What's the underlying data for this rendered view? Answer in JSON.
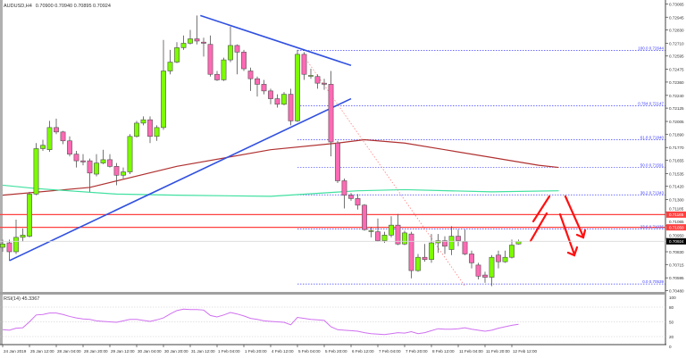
{
  "header": {
    "symbol_timeframe": "AUDUSD,H4",
    "ohlc_readout": "0.70900 0.70940 0.70895 0.70924"
  },
  "rsi_panel": {
    "label": "RSI(14) 45.3367",
    "levels": [
      20,
      50,
      80
    ],
    "scale_labels": [
      "100",
      "80",
      "50",
      "20",
      "0"
    ]
  },
  "colors": {
    "bull_candle": "#7cfc00",
    "bear_candle": "#ff69b4",
    "candle_outline": "#505050",
    "ma_red": "#b03030",
    "ma_green": "#40e0a0",
    "trendline": "#3050e0",
    "fib": "#4040ff",
    "horizontal_level": "#ff4040",
    "arrows": "#ff1010",
    "rsi_line": "#d070f0",
    "price_tag": "#000000"
  },
  "chart_data": {
    "type": "candlestick",
    "symbol": "AUDUSD",
    "timeframe": "H4",
    "ylim": [
      0.7048,
      0.7307
    ],
    "y_ticks": [
      "0.73065",
      "0.72945",
      "0.72830",
      "0.72710",
      "0.72595",
      "0.72475",
      "0.72360",
      "0.72240",
      "0.72125",
      "0.72005",
      "0.71890",
      "0.71770",
      "0.71655",
      "0.71535",
      "0.71420",
      "0.71300",
      "0.71185",
      "0.71065",
      "0.70950",
      "0.70830",
      "0.70715",
      "0.70595",
      "0.70480"
    ],
    "x_labels": [
      "24 Jan 2019",
      "25 Jan 12:00",
      "28 Jan 04:00",
      "28 Jan 20:00",
      "29 Jan 12:00",
      "30 Jan 04:00",
      "30 Jan 20:00",
      "31 Jan 12:00",
      "1 Feb 04:00",
      "1 Feb 20:00",
      "4 Feb 12:00",
      "5 Feb 04:00",
      "5 Feb 20:00",
      "6 Feb 12:00",
      "7 Feb 04:00",
      "7 Feb 20:00",
      "8 Feb 12:00",
      "11 Feb 04:00",
      "11 Feb 20:00",
      "12 Feb 12:00"
    ],
    "x_label_every_bars": 4,
    "candles_ohlc": [
      [
        0.7087,
        0.7094,
        0.7083,
        0.709
      ],
      [
        0.7091,
        0.7094,
        0.7075,
        0.7083
      ],
      [
        0.7083,
        0.7112,
        0.7081,
        0.7096
      ],
      [
        0.7096,
        0.7104,
        0.7092,
        0.7098
      ],
      [
        0.7097,
        0.7137,
        0.7096,
        0.7135
      ],
      [
        0.7135,
        0.7181,
        0.7134,
        0.7176
      ],
      [
        0.7176,
        0.7184,
        0.7174,
        0.7179
      ],
      [
        0.7175,
        0.7201,
        0.7173,
        0.7195
      ],
      [
        0.7195,
        0.7203,
        0.7189,
        0.7191
      ],
      [
        0.7191,
        0.7192,
        0.718,
        0.7183
      ],
      [
        0.7183,
        0.7187,
        0.7169,
        0.7171
      ],
      [
        0.7171,
        0.7174,
        0.7159,
        0.7165
      ],
      [
        0.7165,
        0.7171,
        0.7161,
        0.7164
      ],
      [
        0.7165,
        0.7167,
        0.7137,
        0.7154
      ],
      [
        0.7153,
        0.7171,
        0.7151,
        0.7163
      ],
      [
        0.7163,
        0.7175,
        0.7162,
        0.7166
      ],
      [
        0.7166,
        0.7171,
        0.7159,
        0.716
      ],
      [
        0.716,
        0.7163,
        0.7143,
        0.7152
      ],
      [
        0.7152,
        0.7159,
        0.7149,
        0.7155
      ],
      [
        0.7155,
        0.7189,
        0.7153,
        0.7187
      ],
      [
        0.7187,
        0.7201,
        0.7186,
        0.7199
      ],
      [
        0.7199,
        0.7205,
        0.7197,
        0.7202
      ],
      [
        0.7202,
        0.7205,
        0.7181,
        0.7187
      ],
      [
        0.7187,
        0.7197,
        0.7183,
        0.7195
      ],
      [
        0.7195,
        0.7274,
        0.7193,
        0.7246
      ],
      [
        0.7246,
        0.7265,
        0.7243,
        0.7254
      ],
      [
        0.7254,
        0.7272,
        0.7253,
        0.7267
      ],
      [
        0.7267,
        0.7278,
        0.7265,
        0.7271
      ],
      [
        0.7271,
        0.7283,
        0.727,
        0.7275
      ],
      [
        0.7275,
        0.7296,
        0.727,
        0.7273
      ],
      [
        0.7272,
        0.7276,
        0.7259,
        0.7271
      ],
      [
        0.727,
        0.7278,
        0.7241,
        0.7243
      ],
      [
        0.7243,
        0.7246,
        0.7237,
        0.7238
      ],
      [
        0.7238,
        0.7258,
        0.7237,
        0.7256
      ],
      [
        0.7256,
        0.7286,
        0.7254,
        0.7269
      ],
      [
        0.7269,
        0.727,
        0.7243,
        0.7263
      ],
      [
        0.7263,
        0.7265,
        0.7246,
        0.7248
      ],
      [
        0.7246,
        0.7249,
        0.7228,
        0.7239
      ],
      [
        0.7239,
        0.7241,
        0.7223,
        0.7234
      ],
      [
        0.7234,
        0.7238,
        0.7225,
        0.7228
      ],
      [
        0.7228,
        0.723,
        0.7216,
        0.7221
      ],
      [
        0.7221,
        0.7225,
        0.7213,
        0.7216
      ],
      [
        0.7216,
        0.7227,
        0.7215,
        0.7225
      ],
      [
        0.7225,
        0.723,
        0.7197,
        0.7201
      ],
      [
        0.7201,
        0.7265,
        0.72,
        0.7261
      ],
      [
        0.7261,
        0.7263,
        0.7238,
        0.7243
      ],
      [
        0.7242,
        0.7248,
        0.7239,
        0.7242
      ],
      [
        0.7241,
        0.7243,
        0.723,
        0.7235
      ],
      [
        0.7235,
        0.7239,
        0.7229,
        0.7234
      ],
      [
        0.7234,
        0.7246,
        0.7169,
        0.7182
      ],
      [
        0.7181,
        0.7183,
        0.7145,
        0.7147
      ],
      [
        0.7147,
        0.7149,
        0.7122,
        0.7134
      ],
      [
        0.7134,
        0.7136,
        0.7129,
        0.7131
      ],
      [
        0.7131,
        0.7135,
        0.7121,
        0.7125
      ],
      [
        0.7125,
        0.7126,
        0.7102,
        0.7103
      ],
      [
        0.7102,
        0.7105,
        0.7096,
        0.7102
      ],
      [
        0.7101,
        0.7113,
        0.7092,
        0.7093
      ],
      [
        0.7093,
        0.7101,
        0.7091,
        0.7098
      ],
      [
        0.7098,
        0.7115,
        0.7096,
        0.7107
      ],
      [
        0.7107,
        0.7117,
        0.7089,
        0.709
      ],
      [
        0.709,
        0.7102,
        0.7089,
        0.71
      ],
      [
        0.7099,
        0.7101,
        0.7059,
        0.7066
      ],
      [
        0.7066,
        0.7081,
        0.7065,
        0.7078
      ],
      [
        0.7078,
        0.709,
        0.7074,
        0.7076
      ],
      [
        0.7076,
        0.7099,
        0.7073,
        0.7091
      ],
      [
        0.7091,
        0.7099,
        0.7082,
        0.7093
      ],
      [
        0.7093,
        0.7097,
        0.7081,
        0.7088
      ],
      [
        0.7085,
        0.7106,
        0.708,
        0.7097
      ],
      [
        0.7097,
        0.7103,
        0.7088,
        0.7093
      ],
      [
        0.7092,
        0.7103,
        0.708,
        0.7081
      ],
      [
        0.7081,
        0.7084,
        0.7068,
        0.7073
      ],
      [
        0.7071,
        0.7073,
        0.7058,
        0.7061
      ],
      [
        0.7062,
        0.7065,
        0.7055,
        0.706
      ],
      [
        0.706,
        0.708,
        0.7052,
        0.7078
      ],
      [
        0.708,
        0.7084,
        0.7068,
        0.7074
      ],
      [
        0.7074,
        0.7084,
        0.7073,
        0.7078
      ],
      [
        0.7078,
        0.7094,
        0.7077,
        0.7089
      ],
      [
        0.709,
        0.7094,
        0.70895,
        0.70924
      ]
    ],
    "moving_averages": [
      {
        "color": "#b03030",
        "points": [
          [
            0,
            0.7134
          ],
          [
            13,
            0.7141
          ],
          [
            26,
            0.716
          ],
          [
            40,
            0.7175
          ],
          [
            50,
            0.7181
          ],
          [
            54,
            0.7184
          ],
          [
            60,
            0.7181
          ],
          [
            66,
            0.7175
          ],
          [
            73,
            0.7168
          ],
          [
            80,
            0.7161
          ],
          [
            83,
            0.7159
          ]
        ]
      },
      {
        "color": "#40e0a0",
        "points": [
          [
            0,
            0.7143
          ],
          [
            5,
            0.714
          ],
          [
            17,
            0.7135
          ],
          [
            26,
            0.7134
          ],
          [
            40,
            0.7133
          ],
          [
            53,
            0.7138
          ],
          [
            60,
            0.7139
          ],
          [
            73,
            0.7137
          ],
          [
            83,
            0.7138
          ]
        ]
      }
    ],
    "trendlines": [
      {
        "from": [
          29.5,
          0.7296
        ],
        "to": [
          52,
          0.7251
        ],
        "style": "solid"
      },
      {
        "from": [
          1,
          0.7075
        ],
        "to": [
          52,
          0.7221
        ],
        "style": "solid"
      },
      {
        "from": [
          45,
          0.7259
        ],
        "to": [
          69,
          0.7052
        ],
        "style": "dotted"
      }
    ],
    "fibonacci": {
      "start_bar": 44,
      "levels": [
        {
          "label": "100.0 0.72644",
          "price": 0.72644
        },
        {
          "label": "0.764 0.72147",
          "price": 0.72147
        },
        {
          "label": "61.8 0.71840",
          "price": 0.7184
        },
        {
          "label": "50.0 0.71591",
          "price": 0.71591
        },
        {
          "label": "38.2 0.71343",
          "price": 0.71343
        },
        {
          "label": "23.6 0.71036",
          "price": 0.71036
        },
        {
          "label": "0.0 0.70539",
          "price": 0.70539
        }
      ]
    },
    "horizontal_levels": [
      {
        "label": "0.71165",
        "price": 0.71165
      },
      {
        "label": "0.71050",
        "price": 0.7105
      }
    ],
    "current_price": {
      "label": "0.70924",
      "price": 0.70924
    },
    "rsi_values": [
      34,
      33,
      37,
      38,
      50,
      64,
      65,
      68,
      68,
      65,
      61,
      58,
      56,
      55,
      52,
      51,
      50,
      49,
      52,
      55,
      55,
      53,
      51,
      54,
      58,
      66,
      73,
      76,
      75,
      75,
      74,
      63,
      60,
      64,
      69,
      66,
      62,
      57,
      55,
      52,
      51,
      50,
      49,
      44,
      59,
      57,
      55,
      54,
      53,
      40,
      34,
      33,
      32,
      31,
      28,
      26,
      25,
      24,
      26,
      28,
      27,
      30,
      26,
      28,
      32,
      36,
      35,
      35,
      36,
      38,
      35,
      33,
      31,
      33,
      37,
      40,
      43,
      45
    ],
    "rsi_ylim": [
      0,
      100
    ]
  }
}
